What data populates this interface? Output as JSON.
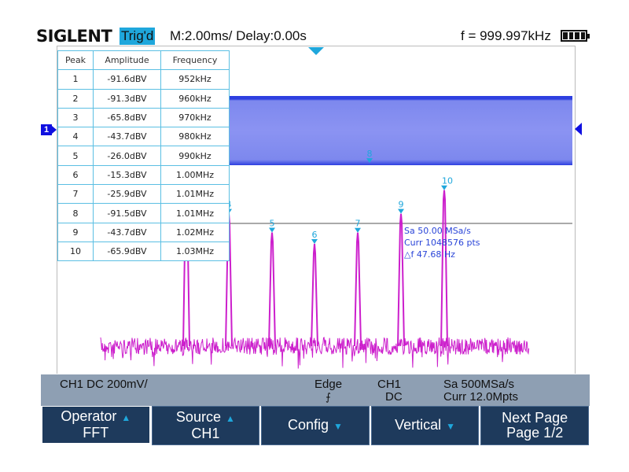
{
  "header": {
    "brand": "SIGLENT",
    "trigger_status": "Trig'd",
    "timebase": "M:2.00ms/ Delay:0.00s",
    "frequency": "f = 999.997kHz",
    "battery_level": 1.0
  },
  "channel_marker": "1",
  "colors": {
    "trace": "#cc1fcc",
    "accent": "#1fa7dc",
    "channel": "#2d3fe0",
    "softkey": "#1e3a5c",
    "status_bar": "#8e9fb3"
  },
  "peak_table": {
    "headers": [
      "Peak",
      "Amplitude",
      "Frequency"
    ],
    "rows": [
      [
        "1",
        "-91.6dBV",
        "952kHz"
      ],
      [
        "2",
        "-91.3dBV",
        "960kHz"
      ],
      [
        "3",
        "-65.8dBV",
        "970kHz"
      ],
      [
        "4",
        "-43.7dBV",
        "980kHz"
      ],
      [
        "5",
        "-26.0dBV",
        "990kHz"
      ],
      [
        "6",
        "-15.3dBV",
        "1.00MHz"
      ],
      [
        "7",
        "-25.9dBV",
        "1.01MHz"
      ],
      [
        "8",
        "-91.5dBV",
        "1.01MHz"
      ],
      [
        "9",
        "-43.7dBV",
        "1.02MHz"
      ],
      [
        "10",
        "-65.9dBV",
        "1.03MHz"
      ]
    ]
  },
  "fft_info": {
    "sample_rate": "Sa 50.00 MSa/s",
    "points": "Curr 1048576 pts",
    "delta_f": "△f 47.68 Hz"
  },
  "chart_data": {
    "type": "line",
    "peaks": [
      {
        "label": "1",
        "amplitude_dbv": -91.6,
        "frequency_khz": 952
      },
      {
        "label": "2",
        "amplitude_dbv": -91.3,
        "frequency_khz": 960
      },
      {
        "label": "3",
        "amplitude_dbv": -65.8,
        "frequency_khz": 970
      },
      {
        "label": "4",
        "amplitude_dbv": -43.7,
        "frequency_khz": 980
      },
      {
        "label": "5",
        "amplitude_dbv": -26.0,
        "frequency_khz": 990
      },
      {
        "label": "6",
        "amplitude_dbv": -15.3,
        "frequency_khz": 1000
      },
      {
        "label": "7",
        "amplitude_dbv": -25.9,
        "frequency_khz": 1010
      },
      {
        "label": "8",
        "amplitude_dbv": -91.5,
        "frequency_khz": 1010
      },
      {
        "label": "9",
        "amplitude_dbv": -43.7,
        "frequency_khz": 1020
      },
      {
        "label": "10",
        "amplitude_dbv": -65.9,
        "frequency_khz": 1030
      }
    ]
  },
  "status": {
    "channel": "CH1 DC 200mV/",
    "trigger_type": "Edge",
    "trigger_source": "CH1",
    "trigger_coupling": "DC",
    "sample_rate": "Sa 500MSa/s",
    "memory": "Curr 12.0Mpts"
  },
  "softkeys": [
    {
      "line1": "Operator",
      "line2": "FFT"
    },
    {
      "line1": "Source",
      "line2": "CH1"
    },
    {
      "line1": "Config",
      "line2": ""
    },
    {
      "line1": "Vertical",
      "line2": ""
    },
    {
      "line1": "Next Page",
      "line2": "Page 1/2"
    }
  ]
}
